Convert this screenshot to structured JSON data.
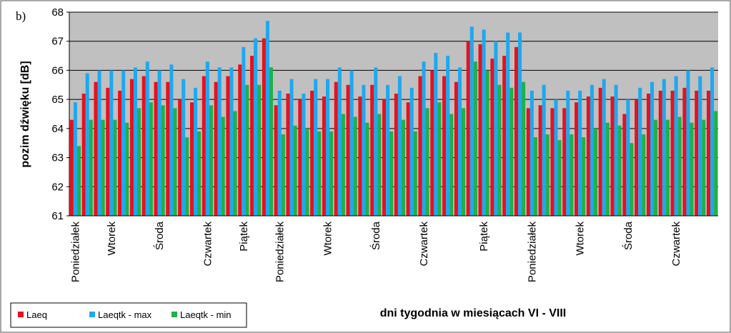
{
  "chart_data": {
    "type": "bar",
    "panel_label": "b)",
    "ylabel": "pozim dźwięku [dB]",
    "xlabel": "dni tygodnia w miesiącach VI - VIII",
    "categories": [
      "Poniedziałek",
      null,
      null,
      "Wtorek",
      null,
      null,
      null,
      "Środa",
      null,
      null,
      null,
      "Czwartek",
      null,
      null,
      "Piątek",
      null,
      null,
      "Poniedziałek",
      null,
      null,
      null,
      "Wtorek",
      null,
      null,
      null,
      "Środa",
      null,
      null,
      null,
      "Czwartek",
      null,
      null,
      null,
      null,
      "Piątek",
      null,
      null,
      null,
      "Poniedziałek",
      null,
      null,
      null,
      "Wtorek",
      null,
      null,
      null,
      "Środa",
      null,
      null,
      null,
      "Czwartek",
      null,
      null,
      null
    ],
    "series": [
      {
        "name": "Laeq",
        "color": "#e8101c",
        "values": [
          64.3,
          65.2,
          65.6,
          65.4,
          65.3,
          65.7,
          65.8,
          65.6,
          65.6,
          65.0,
          64.9,
          65.8,
          65.6,
          65.8,
          66.2,
          66.5,
          67.1,
          64.8,
          65.2,
          65.0,
          65.3,
          65.1,
          65.6,
          65.5,
          65.1,
          65.5,
          65.0,
          65.2,
          64.9,
          65.8,
          66.0,
          65.8,
          65.6,
          67.0,
          66.9,
          66.4,
          66.5,
          66.8,
          64.7,
          64.8,
          64.7,
          64.7,
          64.9,
          65.1,
          65.4,
          65.1,
          64.5,
          65.0,
          65.2,
          65.3,
          65.3,
          65.4,
          65.3,
          65.3
        ]
      },
      {
        "name": "Laeqtk - max",
        "color": "#1ea8f0",
        "values": [
          64.9,
          65.9,
          66.0,
          66.0,
          66.0,
          66.1,
          66.3,
          66.0,
          66.2,
          65.7,
          65.4,
          66.3,
          66.1,
          66.1,
          66.8,
          67.1,
          67.7,
          65.3,
          65.7,
          65.2,
          65.7,
          65.7,
          66.1,
          66.0,
          65.5,
          66.1,
          65.5,
          65.8,
          65.4,
          66.3,
          66.6,
          66.5,
          66.1,
          67.5,
          67.4,
          67.0,
          67.3,
          67.3,
          65.3,
          65.5,
          65.0,
          65.3,
          65.3,
          65.5,
          65.7,
          65.5,
          65.0,
          65.4,
          65.6,
          65.7,
          65.8,
          66.0,
          65.8,
          66.1
        ]
      },
      {
        "name": "Laeqtk - min",
        "color": "#1fb04b",
        "values": [
          63.4,
          64.3,
          64.3,
          64.3,
          64.2,
          64.7,
          64.9,
          64.8,
          64.7,
          63.7,
          63.9,
          64.8,
          64.4,
          64.6,
          65.5,
          65.5,
          66.1,
          63.8,
          64.1,
          64.0,
          63.9,
          63.9,
          64.5,
          64.4,
          64.2,
          64.5,
          63.9,
          64.3,
          63.9,
          64.7,
          64.9,
          64.5,
          64.7,
          66.3,
          66.0,
          65.5,
          65.4,
          65.6,
          63.7,
          63.8,
          63.6,
          63.8,
          63.7,
          64.0,
          64.2,
          64.1,
          63.5,
          63.8,
          64.3,
          64.3,
          64.4,
          64.2,
          64.3,
          64.6
        ]
      }
    ],
    "ylim": [
      61,
      68
    ],
    "yticks": [
      61,
      62,
      63,
      64,
      65,
      66,
      67,
      68
    ],
    "grid": true
  }
}
